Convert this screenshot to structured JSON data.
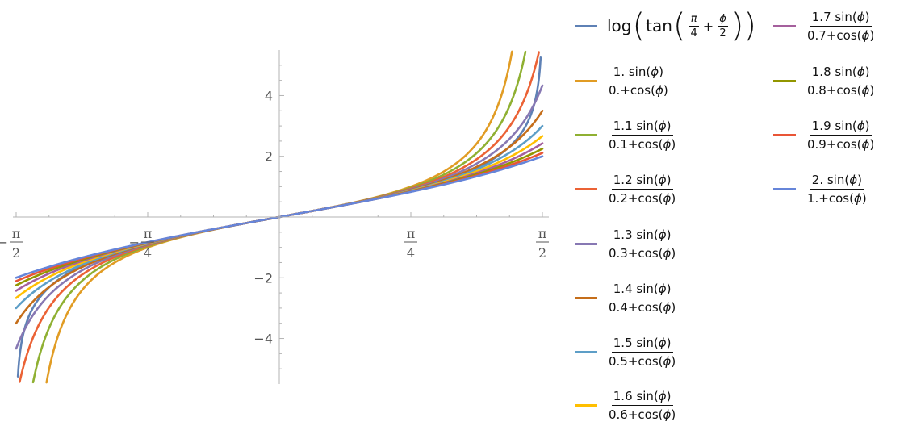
{
  "chart_data": {
    "type": "line",
    "title": "",
    "xlabel": "",
    "ylabel": "",
    "xlim": [
      -1.5708,
      1.5708
    ],
    "ylim": [
      -5.5,
      5.5
    ],
    "x_ticks": [
      {
        "value": -1.5708,
        "sign": "−",
        "num": "π",
        "den": "2"
      },
      {
        "value": -0.7854,
        "sign": "−",
        "num": "π",
        "den": "4"
      },
      {
        "value": 0.7854,
        "sign": "",
        "num": "π",
        "den": "4"
      },
      {
        "value": 1.5708,
        "sign": "",
        "num": "π",
        "den": "2"
      }
    ],
    "y_ticks": [
      {
        "value": -4,
        "label": "−4"
      },
      {
        "value": -2,
        "label": "−2"
      },
      {
        "value": 2,
        "label": "2"
      },
      {
        "value": 4,
        "label": "4"
      }
    ],
    "grid": false,
    "legend_position": "right",
    "phi_name": "ϕ",
    "series": [
      {
        "color": "#5e81b5",
        "kind": "gd",
        "label_fn": "log",
        "label_inner_fn": "tan",
        "label_a_num": "π",
        "label_a_den": "4",
        "label_op": "+",
        "label_b_num": "ϕ",
        "label_b_den": "2"
      },
      {
        "color": "#e19c24",
        "kind": "ratio",
        "coef": 1.0,
        "offset": 0.0,
        "num_label": "1. sin(",
        "den_label": "0.+cos("
      },
      {
        "color": "#8fb032",
        "kind": "ratio",
        "coef": 1.1,
        "offset": 0.1,
        "num_label": "1.1 sin(",
        "den_label": "0.1+cos("
      },
      {
        "color": "#eb6235",
        "kind": "ratio",
        "coef": 1.2,
        "offset": 0.2,
        "num_label": "1.2 sin(",
        "den_label": "0.2+cos("
      },
      {
        "color": "#8778b3",
        "kind": "ratio",
        "coef": 1.3,
        "offset": 0.3,
        "num_label": "1.3 sin(",
        "den_label": "0.3+cos("
      },
      {
        "color": "#c56e1a",
        "kind": "ratio",
        "coef": 1.4,
        "offset": 0.4,
        "num_label": "1.4 sin(",
        "den_label": "0.4+cos("
      },
      {
        "color": "#5d9ec7",
        "kind": "ratio",
        "coef": 1.5,
        "offset": 0.5,
        "num_label": "1.5 sin(",
        "den_label": "0.5+cos("
      },
      {
        "color": "#ffbf00",
        "kind": "ratio",
        "coef": 1.6,
        "offset": 0.6,
        "num_label": "1.6 sin(",
        "den_label": "0.6+cos("
      },
      {
        "color": "#a5609d",
        "kind": "ratio",
        "coef": 1.7,
        "offset": 0.7,
        "num_label": "1.7 sin(",
        "den_label": "0.7+cos("
      },
      {
        "color": "#929600",
        "kind": "ratio",
        "coef": 1.8,
        "offset": 0.8,
        "num_label": "1.8 sin(",
        "den_label": "0.8+cos("
      },
      {
        "color": "#e95536",
        "kind": "ratio",
        "coef": 1.9,
        "offset": 0.9,
        "num_label": "1.9 sin(",
        "den_label": "0.9+cos("
      },
      {
        "color": "#6685d9",
        "kind": "ratio",
        "coef": 2.0,
        "offset": 1.0,
        "num_label": "2. sin(",
        "den_label": "1.+cos("
      }
    ]
  }
}
